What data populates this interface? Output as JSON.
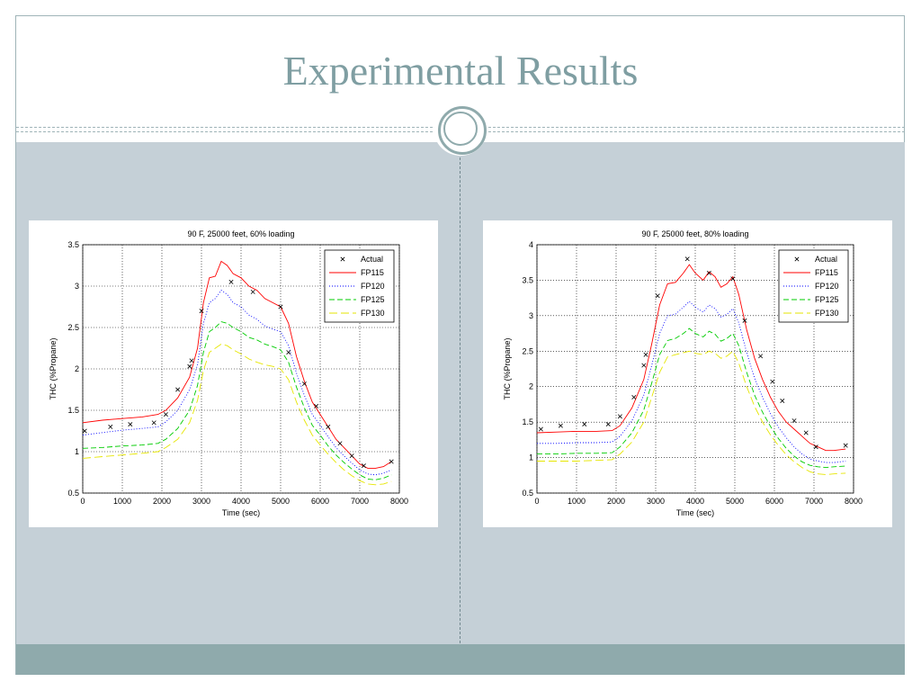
{
  "slide": {
    "title": "Experimental Results"
  },
  "colors": {
    "title": "#7f9ea2",
    "content_bg": "#c5d0d7",
    "footer": "#8faaac",
    "FP115": "#ff0000",
    "FP120": "#0000ff",
    "FP125": "#00cc00",
    "FP130": "#e6e600",
    "actual": "#000000"
  },
  "chart_data": [
    {
      "type": "line",
      "title": "90 F, 25000 feet, 60% loading",
      "xlabel": "Time (sec)",
      "ylabel": "THC (%Propane)",
      "xlim": [
        0,
        8000
      ],
      "ylim": [
        0.5,
        3.5
      ],
      "xticks": [
        0,
        1000,
        2000,
        3000,
        4000,
        5000,
        6000,
        7000,
        8000
      ],
      "yticks": [
        0.5,
        1,
        1.5,
        2,
        2.5,
        3,
        3.5
      ],
      "xtick_labels": [
        "0",
        "1000",
        "2000",
        "3000",
        "4000",
        "5000",
        "6000",
        "7000",
        "8000"
      ],
      "ytick_labels": [
        "0.5",
        "1",
        "1.5",
        "2",
        "2.5",
        "3",
        "3.5"
      ],
      "grid": true,
      "legend_position": "top-right",
      "actual": {
        "name": "Actual",
        "x": [
          50,
          700,
          1200,
          1800,
          2100,
          2400,
          2700,
          2750,
          3000,
          3750,
          4300,
          5000,
          5200,
          5600,
          5900,
          6200,
          6500,
          6800,
          7100,
          7800
        ],
        "y": [
          1.25,
          1.3,
          1.33,
          1.35,
          1.45,
          1.75,
          2.03,
          2.1,
          2.7,
          3.05,
          2.93,
          2.75,
          2.2,
          1.82,
          1.55,
          1.3,
          1.1,
          0.95,
          0.83,
          0.88
        ]
      },
      "series": [
        {
          "name": "FP115",
          "x": [
            0,
            500,
            1000,
            1500,
            1900,
            2100,
            2400,
            2700,
            2900,
            3050,
            3200,
            3350,
            3500,
            3650,
            3800,
            4000,
            4200,
            4400,
            4600,
            4800,
            5000,
            5200,
            5400,
            5600,
            5800,
            6000,
            6200,
            6400,
            6600,
            6800,
            7000,
            7200,
            7400,
            7600,
            7800
          ],
          "y": [
            1.35,
            1.38,
            1.4,
            1.42,
            1.45,
            1.5,
            1.65,
            1.9,
            2.25,
            2.8,
            3.1,
            3.12,
            3.3,
            3.25,
            3.15,
            3.1,
            3.0,
            2.95,
            2.85,
            2.8,
            2.75,
            2.55,
            2.15,
            1.85,
            1.6,
            1.45,
            1.3,
            1.15,
            1.05,
            0.95,
            0.85,
            0.8,
            0.8,
            0.82,
            0.88
          ]
        },
        {
          "name": "FP120",
          "x": [
            0,
            500,
            1000,
            1500,
            1900,
            2100,
            2400,
            2700,
            2900,
            3050,
            3200,
            3350,
            3500,
            3650,
            3800,
            4000,
            4200,
            4400,
            4600,
            4800,
            5000,
            5200,
            5400,
            5600,
            5800,
            6000,
            6200,
            6400,
            6600,
            6800,
            7000,
            7200,
            7400,
            7600,
            7800
          ],
          "y": [
            1.2,
            1.23,
            1.26,
            1.28,
            1.3,
            1.36,
            1.5,
            1.75,
            2.05,
            2.55,
            2.8,
            2.85,
            2.95,
            2.9,
            2.8,
            2.75,
            2.65,
            2.6,
            2.52,
            2.48,
            2.45,
            2.28,
            1.95,
            1.68,
            1.45,
            1.32,
            1.18,
            1.05,
            0.95,
            0.86,
            0.78,
            0.73,
            0.72,
            0.74,
            0.78
          ]
        },
        {
          "name": "FP125",
          "x": [
            0,
            500,
            1000,
            1500,
            1900,
            2100,
            2400,
            2700,
            2900,
            3050,
            3200,
            3350,
            3500,
            3650,
            3800,
            4000,
            4200,
            4400,
            4600,
            4800,
            5000,
            5200,
            5400,
            5600,
            5800,
            6000,
            6200,
            6400,
            6600,
            6800,
            7000,
            7200,
            7400,
            7600,
            7800
          ],
          "y": [
            1.04,
            1.05,
            1.07,
            1.08,
            1.1,
            1.15,
            1.28,
            1.5,
            1.8,
            2.2,
            2.45,
            2.5,
            2.57,
            2.55,
            2.5,
            2.45,
            2.38,
            2.35,
            2.3,
            2.27,
            2.23,
            2.08,
            1.78,
            1.53,
            1.32,
            1.2,
            1.07,
            0.96,
            0.87,
            0.79,
            0.72,
            0.67,
            0.66,
            0.68,
            0.72
          ]
        },
        {
          "name": "FP130",
          "x": [
            0,
            500,
            1000,
            1500,
            1900,
            2100,
            2400,
            2700,
            2900,
            3050,
            3200,
            3350,
            3500,
            3650,
            3800,
            4000,
            4200,
            4400,
            4600,
            4800,
            5000,
            5200,
            5400,
            5600,
            5800,
            6000,
            6200,
            6400,
            6600,
            6800,
            7000,
            7200,
            7400,
            7600,
            7800
          ],
          "y": [
            0.92,
            0.94,
            0.96,
            0.98,
            1.0,
            1.05,
            1.15,
            1.35,
            1.62,
            1.98,
            2.2,
            2.25,
            2.3,
            2.28,
            2.23,
            2.18,
            2.12,
            2.08,
            2.05,
            2.03,
            2.0,
            1.87,
            1.6,
            1.38,
            1.2,
            1.08,
            0.97,
            0.87,
            0.78,
            0.71,
            0.65,
            0.61,
            0.6,
            0.61,
            0.64
          ]
        }
      ]
    },
    {
      "type": "line",
      "title": "90 F, 25000 feet, 80% loading",
      "xlabel": "Time (sec)",
      "ylabel": "THC (%Propane)",
      "xlim": [
        0,
        8000
      ],
      "ylim": [
        0.5,
        4
      ],
      "xticks": [
        0,
        1000,
        2000,
        3000,
        4000,
        5000,
        6000,
        7000,
        8000
      ],
      "yticks": [
        0.5,
        1,
        1.5,
        2,
        2.5,
        3,
        3.5,
        4
      ],
      "xtick_labels": [
        "0",
        "1000",
        "2000",
        "3000",
        "4000",
        "5000",
        "6000",
        "7000",
        "8000"
      ],
      "ytick_labels": [
        "0.5",
        "1",
        "1.5",
        "2",
        "2.5",
        "3",
        "3.5",
        "4"
      ],
      "grid": true,
      "legend_position": "top-right",
      "actual": {
        "name": "Actual",
        "x": [
          100,
          600,
          1200,
          1800,
          2100,
          2450,
          2700,
          2750,
          3050,
          3800,
          4350,
          4950,
          5250,
          5650,
          5950,
          6200,
          6500,
          6800,
          7050,
          7800
        ],
        "y": [
          1.4,
          1.45,
          1.47,
          1.47,
          1.58,
          1.85,
          2.3,
          2.45,
          3.28,
          3.8,
          3.6,
          3.52,
          2.93,
          2.43,
          2.07,
          1.8,
          1.52,
          1.35,
          1.15,
          1.17
        ]
      },
      "series": [
        {
          "name": "FP115",
          "x": [
            0,
            500,
            1000,
            1500,
            1900,
            2100,
            2400,
            2700,
            2900,
            3100,
            3300,
            3500,
            3700,
            3850,
            4000,
            4200,
            4350,
            4500,
            4650,
            4800,
            4950,
            5100,
            5300,
            5500,
            5700,
            5900,
            6100,
            6300,
            6500,
            6700,
            6900,
            7100,
            7300,
            7500,
            7800
          ],
          "y": [
            1.35,
            1.36,
            1.37,
            1.37,
            1.38,
            1.45,
            1.7,
            2.1,
            2.6,
            3.15,
            3.45,
            3.47,
            3.6,
            3.72,
            3.6,
            3.5,
            3.62,
            3.55,
            3.4,
            3.45,
            3.55,
            3.3,
            2.8,
            2.4,
            2.1,
            1.85,
            1.65,
            1.5,
            1.4,
            1.3,
            1.2,
            1.15,
            1.1,
            1.1,
            1.12
          ]
        },
        {
          "name": "FP120",
          "x": [
            0,
            500,
            1000,
            1500,
            1900,
            2100,
            2400,
            2700,
            2900,
            3100,
            3300,
            3500,
            3700,
            3850,
            4000,
            4200,
            4350,
            4500,
            4650,
            4800,
            4950,
            5100,
            5300,
            5500,
            5700,
            5900,
            6100,
            6300,
            6500,
            6700,
            6900,
            7100,
            7300,
            7500,
            7800
          ],
          "y": [
            1.2,
            1.2,
            1.21,
            1.21,
            1.22,
            1.3,
            1.52,
            1.88,
            2.3,
            2.75,
            3.0,
            3.02,
            3.12,
            3.2,
            3.12,
            3.05,
            3.15,
            3.1,
            2.98,
            3.02,
            3.1,
            2.9,
            2.48,
            2.12,
            1.85,
            1.62,
            1.43,
            1.28,
            1.15,
            1.05,
            0.98,
            0.95,
            0.93,
            0.93,
            0.95
          ]
        },
        {
          "name": "FP125",
          "x": [
            0,
            500,
            1000,
            1500,
            1900,
            2100,
            2400,
            2700,
            2900,
            3100,
            3300,
            3500,
            3700,
            3850,
            4000,
            4200,
            4350,
            4500,
            4650,
            4800,
            4950,
            5100,
            5300,
            5500,
            5700,
            5900,
            6100,
            6300,
            6500,
            6700,
            6900,
            7100,
            7300,
            7500,
            7800
          ],
          "y": [
            1.05,
            1.05,
            1.06,
            1.06,
            1.07,
            1.15,
            1.35,
            1.67,
            2.05,
            2.45,
            2.65,
            2.68,
            2.75,
            2.82,
            2.75,
            2.7,
            2.78,
            2.74,
            2.64,
            2.68,
            2.75,
            2.58,
            2.2,
            1.88,
            1.64,
            1.44,
            1.27,
            1.13,
            1.02,
            0.94,
            0.89,
            0.87,
            0.86,
            0.87,
            0.88
          ]
        },
        {
          "name": "FP130",
          "x": [
            0,
            500,
            1000,
            1500,
            1900,
            2100,
            2400,
            2700,
            2900,
            3100,
            3300,
            3500,
            3700,
            3850,
            4000,
            4200,
            4350,
            4500,
            4650,
            4800,
            4950,
            5100,
            5300,
            5500,
            5700,
            5900,
            6100,
            6300,
            6500,
            6700,
            6900,
            7100,
            7300,
            7500,
            7800
          ],
          "y": [
            0.95,
            0.95,
            0.95,
            0.96,
            0.97,
            1.05,
            1.22,
            1.5,
            1.85,
            2.2,
            2.42,
            2.45,
            2.48,
            2.5,
            2.47,
            2.45,
            2.5,
            2.47,
            2.4,
            2.43,
            2.5,
            2.33,
            2.0,
            1.72,
            1.5,
            1.32,
            1.17,
            1.04,
            0.94,
            0.86,
            0.8,
            0.77,
            0.76,
            0.77,
            0.78
          ]
        }
      ]
    }
  ]
}
